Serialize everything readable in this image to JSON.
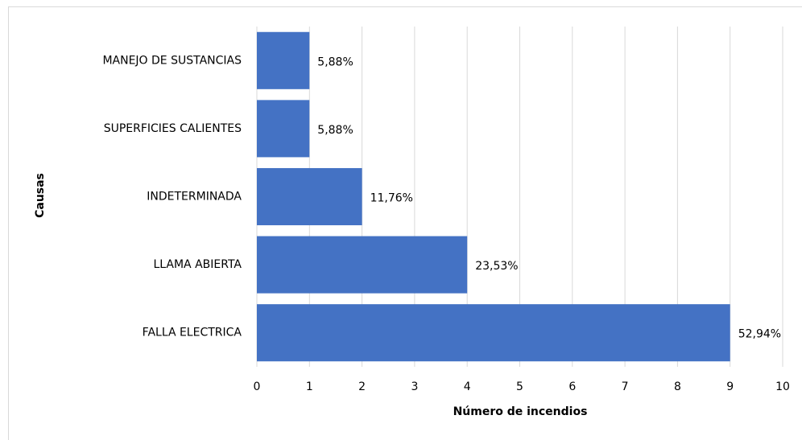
{
  "chart_data": {
    "type": "hbar",
    "categories": [
      "MANEJO DE SUSTANCIAS",
      "SUPERFICIES CALIENTES",
      "INDETERMINADA",
      "LLAMA ABIERTA",
      "FALLA ELECTRICA"
    ],
    "values": [
      1,
      1,
      2,
      4,
      9
    ],
    "shares": [
      5.88,
      5.88,
      11.76,
      23.53,
      52.94
    ],
    "value_labels": [
      "5,88%",
      "5,88%",
      "11,76%",
      "23,53%",
      "52,94%"
    ],
    "color": "#4472c4",
    "xlabel": "Número de incendios",
    "ylabel": "Causas",
    "xlim": [
      0,
      10
    ],
    "xticks": [
      0,
      1,
      2,
      3,
      4,
      5,
      6,
      7,
      8,
      9,
      10
    ],
    "grid": true
  }
}
